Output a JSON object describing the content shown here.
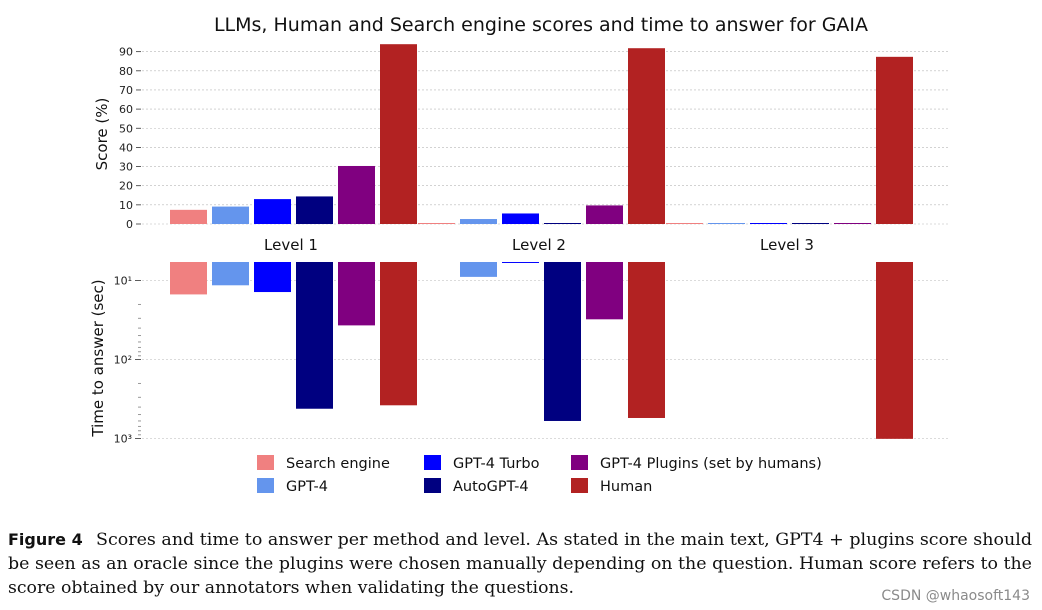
{
  "chart_data": [
    {
      "type": "bar",
      "title": "LLMs, Human and Search engine scores and time to answer for GAIA",
      "ylabel": "Score (%)",
      "xlabel": "",
      "ylim": [
        0,
        95
      ],
      "yticks": [
        0,
        10,
        20,
        30,
        40,
        50,
        60,
        70,
        80,
        90
      ],
      "grid": true,
      "categories": [
        "Level 1",
        "Level 2",
        "Level 3"
      ],
      "series": [
        {
          "name": "Search engine",
          "color": "#f08080",
          "values": [
            7.4,
            0,
            0
          ]
        },
        {
          "name": "GPT-4",
          "color": "#6495ed",
          "values": [
            9.1,
            2.6,
            0
          ]
        },
        {
          "name": "GPT-4 Turbo",
          "color": "#0000ff",
          "values": [
            13.0,
            5.5,
            0
          ]
        },
        {
          "name": "AutoGPT-4",
          "color": "#000080",
          "values": [
            14.4,
            0.4,
            0
          ]
        },
        {
          "name": "GPT-4 Plugins (set by humans)",
          "color": "#800080",
          "values": [
            30.3,
            9.7,
            0
          ]
        },
        {
          "name": "Human",
          "color": "#b22222",
          "values": [
            93.9,
            91.8,
            87.3
          ]
        }
      ]
    },
    {
      "type": "bar",
      "ylabel": "Time to answer (sec)",
      "xlabel": "",
      "yscale": "log",
      "inverted": true,
      "ylim": [
        5,
        1000
      ],
      "yticks": [
        10,
        100,
        1000
      ],
      "ytick_labels": [
        "10¹",
        "10²",
        "10³"
      ],
      "grid": true,
      "categories": [
        "Level 1",
        "Level 2",
        "Level 3"
      ],
      "series": [
        {
          "name": "Search engine",
          "values": [
            15,
            null,
            null
          ]
        },
        {
          "name": "GPT-4",
          "values": [
            11.5,
            9,
            null
          ]
        },
        {
          "name": "GPT-4 Turbo",
          "values": [
            14,
            6,
            null
          ]
        },
        {
          "name": "AutoGPT-4",
          "values": [
            420,
            600,
            null
          ]
        },
        {
          "name": "GPT-4 Plugins (set by humans)",
          "values": [
            37,
            31,
            null
          ]
        },
        {
          "name": "Human",
          "values": [
            380,
            550,
            1010
          ]
        }
      ]
    }
  ],
  "legend": {
    "placement": "bottom-center",
    "items": [
      {
        "label": "Search engine",
        "color": "#f08080"
      },
      {
        "label": "GPT-4",
        "color": "#6495ed"
      },
      {
        "label": "GPT-4 Turbo",
        "color": "#0000ff"
      },
      {
        "label": "AutoGPT-4",
        "color": "#000080"
      },
      {
        "label": "GPT-4 Plugins (set by humans)",
        "color": "#800080"
      },
      {
        "label": "Human",
        "color": "#b22222"
      }
    ]
  },
  "caption": {
    "label": "Figure 4",
    "lines": [
      "Scores and time to answer per method and level. As stated in the main text, GPT4 + plugins score should",
      "be seen as an oracle since the plugins were chosen manually depending on the question. Human score refers to the",
      "score obtained by our annotators when validating the questions."
    ]
  },
  "watermark": "CSDN @whaosoft143"
}
